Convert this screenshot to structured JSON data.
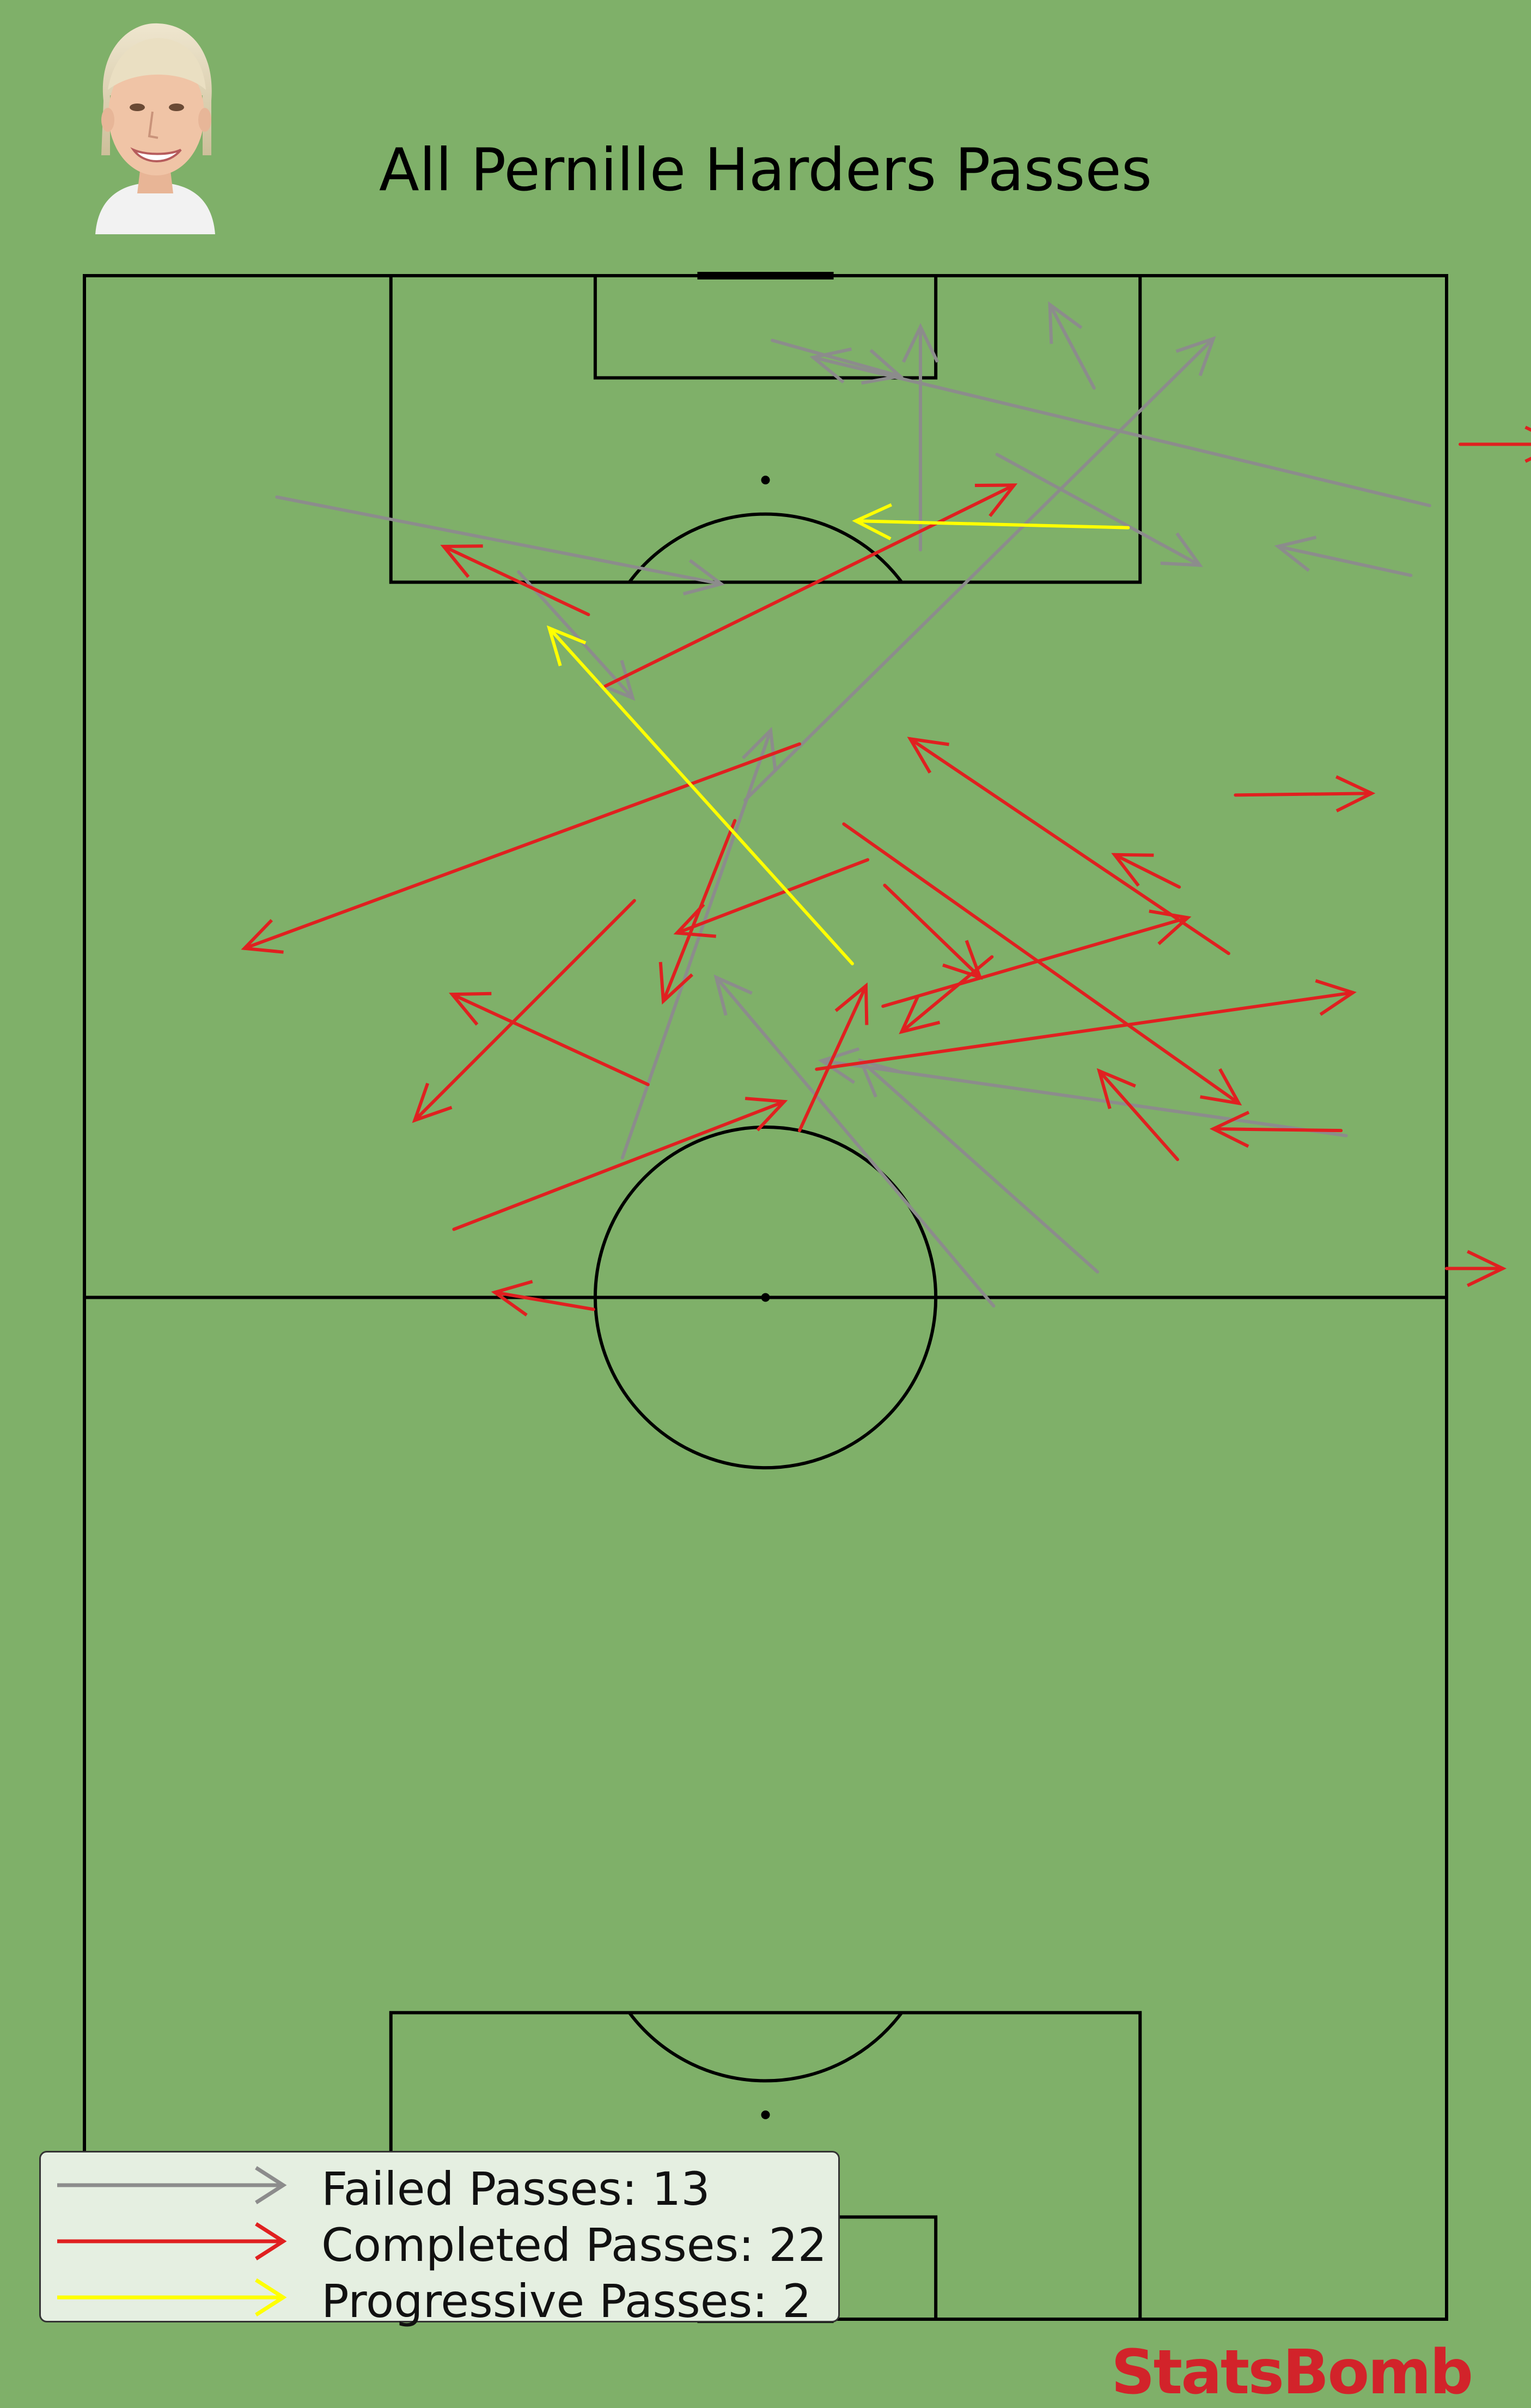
{
  "title": "All Pernille Harders Passes",
  "brand": "StatsBomb",
  "colors": {
    "background": "#7fb069",
    "failed": "#8c8c8c",
    "completed": "#e02020",
    "progressive": "#ffff00",
    "lines": "#000000",
    "brand": "#d2232a"
  },
  "legend": [
    {
      "label": "Failed Passes",
      "count": "13",
      "color_key": "failed"
    },
    {
      "label": "Completed Passes",
      "count": "22",
      "color_key": "completed"
    },
    {
      "label": "Progressive Passes",
      "count": "2",
      "color_key": "progressive"
    }
  ],
  "chart_data": {
    "type": "pass-map",
    "pitch": {
      "length": 120,
      "width": 80,
      "orientation": "vertical",
      "attacking": "up"
    },
    "series": [
      {
        "name": "Failed Passes",
        "color_key": "failed",
        "passes": [
          [
            89.2,
            38.8,
            116.3,
            66.3
          ],
          [
            109.5,
            53.6,
            103.0,
            65.5
          ],
          [
            68.2,
            31.6,
            93.3,
            40.3
          ],
          [
            61.5,
            59.5,
            73.9,
            45.6
          ],
          [
            107.0,
            11.3,
            101.9,
            37.4
          ],
          [
            106.5,
            79.0,
            115.2,
            42.8
          ],
          [
            59.5,
            53.4,
            78.8,
            37.1
          ],
          [
            102.6,
            25.5,
            95.2,
            32.2
          ],
          [
            102.4,
            77.9,
            104.1,
            70.1
          ],
          [
            103.9,
            49.1,
            117.0,
            49.1
          ],
          [
            113.4,
            59.3,
            118.3,
            56.7
          ],
          [
            116.2,
            40.4,
            114.1,
            47.9
          ],
          [
            69.5,
            74.1,
            73.9,
            43.3
          ]
        ]
      },
      {
        "name": "Completed Passes",
        "color_key": "completed",
        "passes": [
          [
            89.5,
            67.6,
            89.6,
            75.6
          ],
          [
            61.7,
            80.0,
            61.7,
            83.3
          ],
          [
            59.3,
            29.9,
            60.3,
            24.1
          ],
          [
            85.7,
            46.0,
            81.4,
            34.8
          ],
          [
            84.1,
            64.3,
            86.0,
            60.5
          ],
          [
            95.9,
            30.6,
            107.7,
            54.6
          ],
          [
            77.1,
            46.9,
            82.3,
            64.8
          ],
          [
            68.1,
            64.2,
            73.3,
            59.6
          ],
          [
            73.4,
            43.0,
            77.9,
            74.5
          ],
          [
            92.5,
            42.0,
            80.5,
            9.4
          ],
          [
            87.8,
            44.6,
            71.4,
            67.8
          ],
          [
            64.0,
            21.7,
            71.5,
            41.1
          ],
          [
            88.0,
            38.2,
            77.4,
            34.0
          ],
          [
            69.8,
            42.0,
            78.3,
            45.9
          ],
          [
            83.3,
            32.3,
            70.4,
            19.4
          ],
          [
            69.8,
            73.8,
            69.9,
            66.3
          ],
          [
            80.0,
            53.3,
            75.6,
            48.0
          ],
          [
            100.1,
            29.6,
            104.1,
            21.1
          ],
          [
            72.5,
            33.1,
            77.8,
            21.6
          ],
          [
            110.1,
            80.8,
            110.1,
            86.7
          ],
          [
            80.2,
            67.2,
            92.8,
            48.5
          ],
          [
            84.2,
            47.0,
            78.8,
            52.6
          ]
        ]
      },
      {
        "name": "Progressive Passes",
        "color_key": "progressive",
        "passes": [
          [
            105.2,
            61.3,
            105.6,
            45.3
          ],
          [
            79.6,
            45.1,
            99.3,
            27.3
          ]
        ]
      }
    ],
    "xlabel": "",
    "ylabel": ""
  }
}
